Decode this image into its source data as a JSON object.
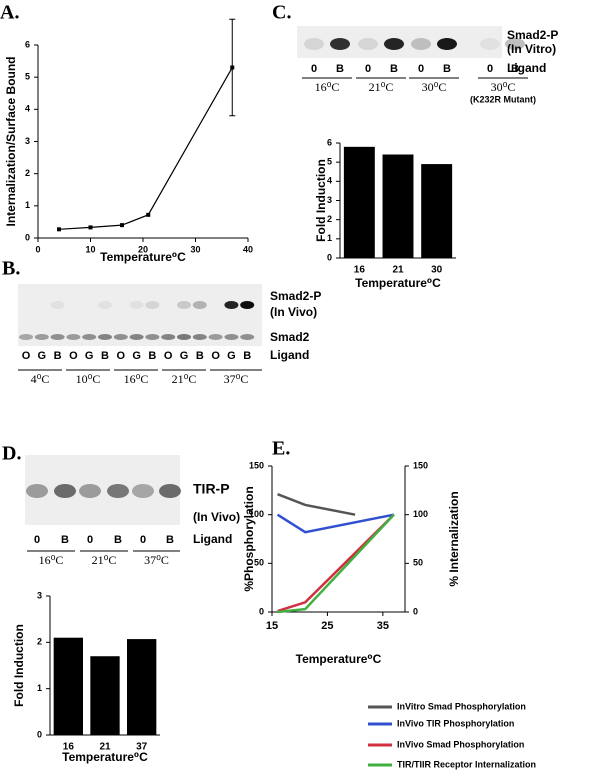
{
  "panels": [
    "A.",
    "B.",
    "C.",
    "D.",
    "E."
  ],
  "chart_data": [
    {
      "type": "line",
      "xlabel": "Temperature⁰C",
      "ylabel": "Internalization/Surface Bound",
      "x": [
        4,
        10,
        16,
        21,
        37
      ],
      "values": [
        0.27,
        0.33,
        0.4,
        0.72,
        5.3
      ],
      "errors": [
        null,
        null,
        null,
        null,
        1.5
      ],
      "color": "#000000",
      "xlim": [
        0,
        40
      ],
      "xticks": [
        0,
        10,
        20,
        30,
        40
      ],
      "ylim": [
        0,
        6
      ],
      "yticks": [
        0,
        1,
        2,
        3,
        4,
        5,
        6
      ]
    },
    {
      "type": "bar",
      "xlabel": "Temperature⁰C",
      "ylabel": "Fold Induction",
      "categories": [
        "16",
        "21",
        "30"
      ],
      "values": [
        5.8,
        5.4,
        4.9
      ],
      "color": "#000000",
      "ylim": [
        0,
        6
      ],
      "yticks": [
        0,
        1,
        2,
        3,
        4,
        5,
        6
      ]
    },
    {
      "type": "bar",
      "xlabel": "Temperature⁰C",
      "ylabel": "Fold Induction",
      "categories": [
        "16",
        "21",
        "37"
      ],
      "values": [
        2.1,
        1.7,
        2.07
      ],
      "color": "#000000",
      "ylim": [
        0,
        3
      ],
      "yticks": [
        0,
        1,
        2,
        3
      ]
    },
    {
      "type": "line2",
      "xlabel": "Temperature⁰C",
      "ylabel": "%Phosphorylation",
      "y2label": "% Internalization",
      "xlim": [
        15,
        39
      ],
      "xticks": [
        15,
        25,
        35
      ],
      "ylim": [
        0,
        150
      ],
      "yticks": [
        0,
        50,
        100,
        150
      ],
      "y2lim": [
        0,
        150
      ],
      "y2ticks": [
        0,
        50,
        100,
        150
      ],
      "legend": "bottom",
      "series": [
        {
          "name": "InVitro Smad Phosphorylation",
          "color": "#555555",
          "x": [
            16,
            21,
            30
          ],
          "values": [
            121,
            110,
            100
          ]
        },
        {
          "name": "InVivo TIR Phosphorylation",
          "color": "#3050d0",
          "x": [
            16,
            21,
            37
          ],
          "values": [
            100,
            82,
            100
          ]
        },
        {
          "name": "InVivo Smad Phosphorylation",
          "color": "#d03040",
          "x": [
            16,
            21,
            37
          ],
          "values": [
            1,
            10,
            100
          ]
        },
        {
          "name": "TIR/TIIR Receptor Internalization",
          "color": "#40b040",
          "x": [
            16,
            21,
            37
          ],
          "values": [
            0,
            3,
            100
          ],
          "axis": "y2"
        }
      ]
    }
  ],
  "blots": {
    "B": {
      "labels": [
        "Smad2-P",
        "(In Vivo)",
        "Smad2",
        "Ligand"
      ],
      "lanes": [
        [
          "O",
          "G",
          "B"
        ],
        [
          "O",
          "G",
          "B"
        ],
        [
          "O",
          "G",
          "B"
        ],
        [
          "O",
          "G",
          "B"
        ],
        [
          "O",
          "G",
          "B"
        ]
      ],
      "temps": [
        "4⁰C",
        "10⁰C",
        "16⁰C",
        "21⁰C",
        "37⁰C"
      ]
    },
    "C": {
      "labels": [
        "Smad2-P",
        "(In Vitro)",
        "Ligand"
      ],
      "lanes": [
        [
          "0",
          "B"
        ],
        [
          "0",
          "B"
        ],
        [
          "0",
          "B"
        ],
        [
          "0",
          "B"
        ]
      ],
      "temps": [
        "16⁰C",
        "21⁰C",
        "30⁰C",
        "30⁰C"
      ],
      "note": "(K232R Mutant)"
    },
    "D": {
      "labels": [
        "TIR-P",
        "(In Vivo)",
        "Ligand"
      ],
      "lanes": [
        [
          "0",
          "B"
        ],
        [
          "0",
          "B"
        ],
        [
          "0",
          "B"
        ]
      ],
      "temps": [
        "16⁰C",
        "21⁰C",
        "37⁰C"
      ]
    }
  }
}
